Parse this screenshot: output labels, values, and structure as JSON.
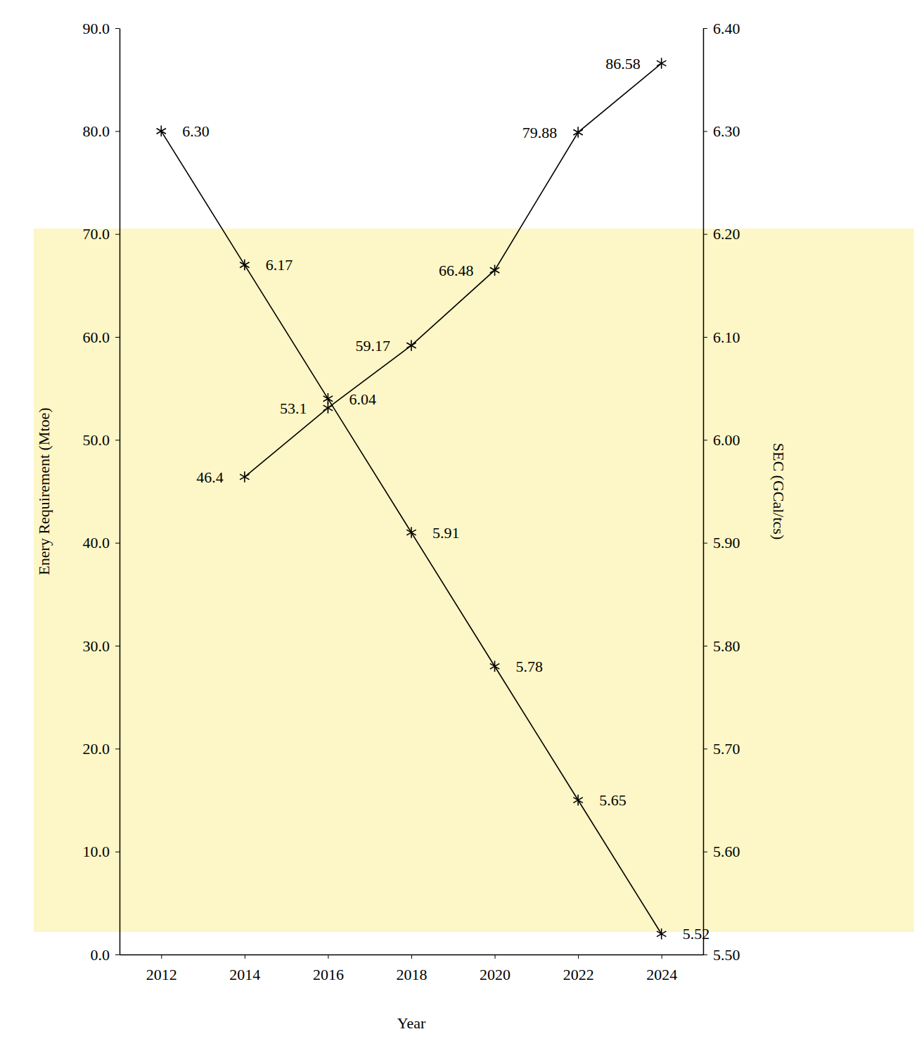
{
  "chart_data": {
    "type": "line",
    "x_label": "Year",
    "y_label": "Enery Requirement (Mtoe)",
    "y2_label": "SEC (GCal/tcs)",
    "x": [
      2012,
      2014,
      2016,
      2018,
      2020,
      2022,
      2024
    ],
    "xlim": [
      2011,
      2025
    ],
    "xticks": [
      2012,
      2014,
      2016,
      2018,
      2020,
      2022,
      2024
    ],
    "ylim": [
      0,
      90
    ],
    "yticks": [
      {
        "value": 0,
        "label": "0.0"
      },
      {
        "value": 10,
        "label": "10.0"
      },
      {
        "value": 20,
        "label": "20.0"
      },
      {
        "value": 30,
        "label": "30.0"
      },
      {
        "value": 40,
        "label": "40.0"
      },
      {
        "value": 50,
        "label": "50.0"
      },
      {
        "value": 60,
        "label": "60.0"
      },
      {
        "value": 70,
        "label": "70.0"
      },
      {
        "value": 80,
        "label": "80.0"
      },
      {
        "value": 90,
        "label": "90.0"
      }
    ],
    "y2lim": [
      5.5,
      6.4
    ],
    "y2ticks": [
      {
        "value": 5.5,
        "label": "5.50"
      },
      {
        "value": 5.6,
        "label": "5.60"
      },
      {
        "value": 5.7,
        "label": "5.70"
      },
      {
        "value": 5.8,
        "label": "5.80"
      },
      {
        "value": 5.9,
        "label": "5.90"
      },
      {
        "value": 6.0,
        "label": "6.00"
      },
      {
        "value": 6.1,
        "label": "6.10"
      },
      {
        "value": 6.2,
        "label": "6.20"
      },
      {
        "value": 6.3,
        "label": "6.30"
      },
      {
        "value": 6.4,
        "label": "6.40"
      }
    ],
    "grid": false,
    "data_labels": true,
    "series": [
      {
        "color": "#000000",
        "marker": "asterisk",
        "line_style": "solid",
        "values": [
          null,
          46.4,
          53.1,
          59.17,
          66.48,
          79.88,
          86.58
        ]
      },
      {
        "axis": "y2",
        "color": "#000000",
        "marker": "asterisk",
        "line_style": "solid",
        "values": [
          6.3,
          6.17,
          6.04,
          5.91,
          5.78,
          5.65,
          5.52
        ],
        "value_labels": [
          "6.30",
          "6.17",
          "6.04",
          "5.91",
          "5.78",
          "5.65",
          "5.52"
        ]
      }
    ]
  }
}
